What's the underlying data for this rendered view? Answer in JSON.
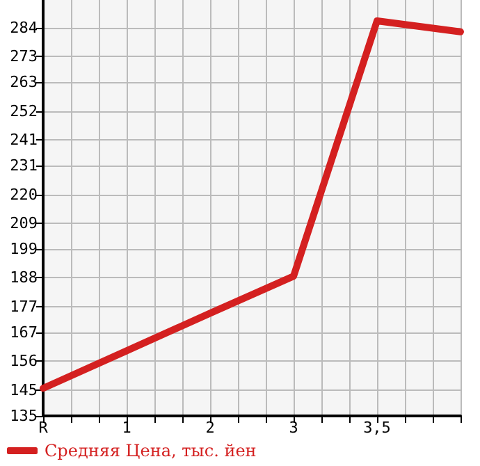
{
  "chart_data": {
    "type": "line",
    "categories": [
      "R",
      "1",
      "2",
      "3",
      "3,5",
      null
    ],
    "series": [
      {
        "name": "Средняя Цена, тыс. йен",
        "color": "#d42020",
        "values": [
          145.6,
          160,
          174.4,
          188.6,
          286.6,
          282.4
        ]
      }
    ],
    "ylim": [
      135,
      294.6
    ],
    "yticks": [
      135,
      145,
      156,
      167,
      177,
      188,
      199,
      209,
      220,
      231,
      241,
      252,
      263,
      273,
      284
    ],
    "grid": true,
    "legend": "bottom left",
    "marker": "none",
    "line_style": "solid"
  }
}
